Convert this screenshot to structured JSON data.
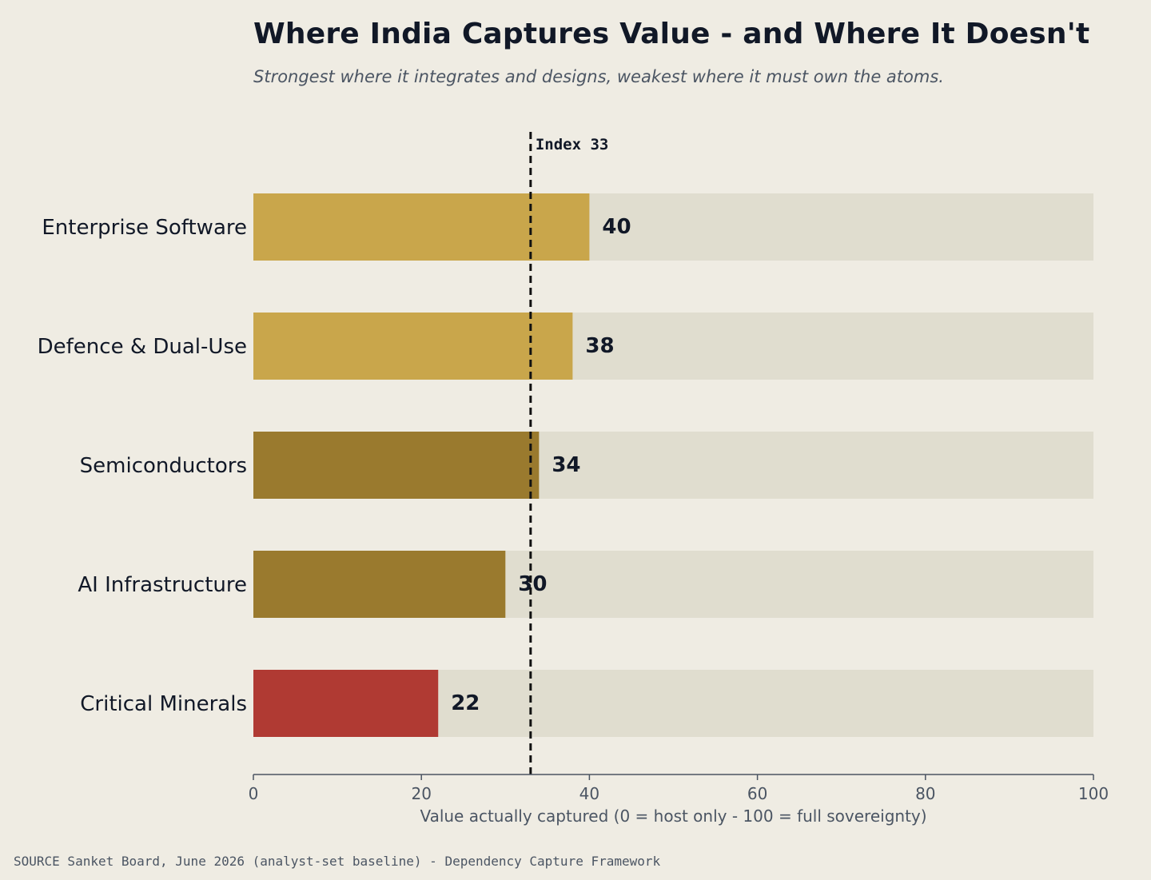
{
  "title": "Where India Captures Value - and Where It Doesn't",
  "subtitle": "Strongest where it integrates and designs, weakest where it must own the atoms.",
  "source": "SOURCE  Sanket Board, June 2026 (analyst-set baseline) - Dependency Capture Framework",
  "chart_data": {
    "type": "bar",
    "orientation": "horizontal",
    "categories": [
      "Enterprise Software",
      "Defence & Dual-Use",
      "Semiconductors",
      "AI Infrastructure",
      "Critical Minerals"
    ],
    "values": [
      40,
      38,
      34,
      30,
      22
    ],
    "bar_colors": [
      "#c9a64b",
      "#c9a64b",
      "#9a7a2e",
      "#9a7a2e",
      "#b03a33"
    ],
    "track_color": "#e0ddcf",
    "xlim": [
      0,
      100
    ],
    "xticks": [
      0,
      20,
      40,
      60,
      80,
      100
    ],
    "xlabel": "Value actually captured  (0 = host only - 100 = full sovereignty)",
    "ylabel": "",
    "reference_line": {
      "value": 33,
      "label": "Index 33"
    },
    "grid": false,
    "legend": "none"
  }
}
